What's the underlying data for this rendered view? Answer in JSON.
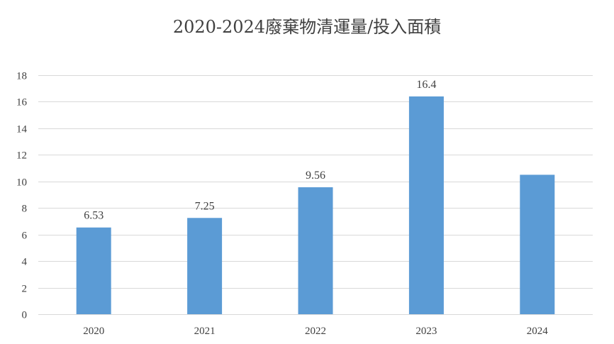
{
  "chart_data": {
    "type": "bar",
    "title": "2020-2024廢棄物清運量/投入面積",
    "xlabel": "",
    "ylabel": "",
    "categories": [
      "2020",
      "2021",
      "2022",
      "2023",
      "2024"
    ],
    "values": [
      6.53,
      7.25,
      9.56,
      16.4,
      10.5
    ],
    "data_labels": [
      "6.53",
      "7.25",
      "9.56",
      "16.4",
      ""
    ],
    "ylim": [
      0,
      18
    ],
    "yticks": [
      0,
      2,
      4,
      6,
      8,
      10,
      12,
      14,
      16,
      18
    ],
    "grid": true,
    "legend": "none",
    "bar_color": "#5b9bd5",
    "grid_color": "#d9d9d9"
  }
}
